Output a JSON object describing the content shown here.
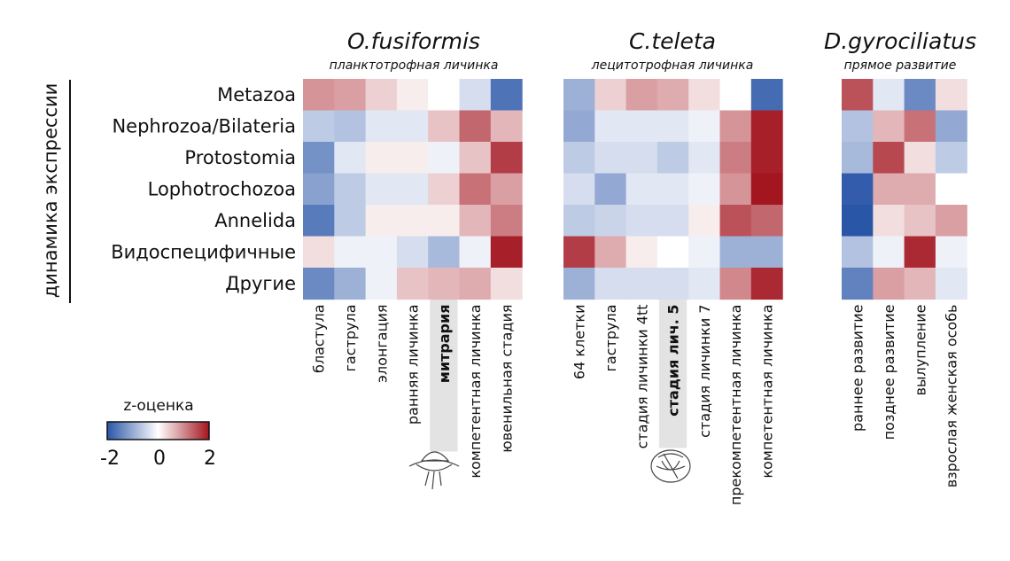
{
  "chart_data": {
    "type": "heatmap",
    "y_axis_label": "динамика экспрессии",
    "rows": [
      "Metazoa",
      "Nephrozoa/Bilateria",
      "Protostomia",
      "Lophotrochozoa",
      "Annelida",
      "Видоспецифичные",
      "Другие"
    ],
    "legend": {
      "title": "z-оценка",
      "min": -2,
      "mid": 0,
      "max": 2,
      "min_label": "-2",
      "mid_label": "0",
      "max_label": "2",
      "colors": [
        "#2a56a8",
        "#ffffff",
        "#a3151f"
      ]
    },
    "panels": [
      {
        "species": "O.fusiformis",
        "subtitle": "планктотрофная личинка",
        "highlight_column": 4,
        "columns": [
          "бластула",
          "гаструла",
          "элонгация",
          "ранняя личинка",
          "митрария",
          "компетентная личинка",
          "ювенильная стадия"
        ],
        "values": [
          [
            0.8,
            0.7,
            0.3,
            0.1,
            0.0,
            -0.3,
            -1.6
          ],
          [
            -0.5,
            -0.6,
            -0.2,
            -0.2,
            0.4,
            1.2,
            0.5
          ],
          [
            -1.2,
            -0.2,
            0.1,
            0.1,
            -0.1,
            0.4,
            1.6
          ],
          [
            -1.0,
            -0.5,
            -0.2,
            -0.2,
            0.3,
            1.1,
            0.7
          ],
          [
            -1.5,
            -0.5,
            0.1,
            0.1,
            0.1,
            0.5,
            1.0
          ],
          [
            0.2,
            -0.1,
            -0.1,
            -0.3,
            -0.7,
            -0.1,
            1.9
          ],
          [
            -1.3,
            -0.8,
            -0.1,
            0.4,
            0.5,
            0.6,
            0.2
          ]
        ]
      },
      {
        "species": "C.teleta",
        "subtitle": "лецитотрофная личинка",
        "highlight_column": 3,
        "columns": [
          "64 клетки",
          "гаструла",
          "стадия личинки 4tt",
          "стадия лич. 5",
          "стадия личинки 7",
          "прекомпетентная личинка",
          "компетентная личинка"
        ],
        "values": [
          [
            -0.8,
            0.3,
            0.7,
            0.6,
            0.2,
            0.0,
            -1.7
          ],
          [
            -0.9,
            -0.2,
            -0.2,
            -0.2,
            -0.1,
            0.8,
            1.9
          ],
          [
            -0.5,
            -0.3,
            -0.3,
            -0.5,
            -0.2,
            1.0,
            1.9
          ],
          [
            -0.3,
            -0.9,
            -0.2,
            -0.2,
            -0.1,
            0.8,
            2.0
          ],
          [
            -0.5,
            -0.4,
            -0.3,
            -0.3,
            0.1,
            1.4,
            1.2
          ],
          [
            1.6,
            0.6,
            0.1,
            0.0,
            -0.1,
            -0.8,
            -0.8
          ],
          [
            -0.8,
            -0.3,
            -0.3,
            -0.3,
            -0.2,
            0.9,
            1.8
          ]
        ]
      },
      {
        "species": "D.gyrociliatus",
        "subtitle": "прямое развитие",
        "highlight_column": null,
        "columns": [
          "раннее развитие",
          "позднее развитие",
          "вылупление",
          "взрослая женская особь"
        ],
        "values": [
          [
            1.4,
            -0.2,
            -1.3,
            0.2
          ],
          [
            -0.6,
            0.5,
            1.1,
            -0.9
          ],
          [
            -0.7,
            1.5,
            0.2,
            -0.5
          ],
          [
            -1.9,
            0.6,
            0.6,
            0.0
          ],
          [
            -2.0,
            0.2,
            0.4,
            0.7
          ],
          [
            -0.6,
            -0.1,
            1.8,
            -0.1
          ],
          [
            -1.4,
            0.7,
            0.5,
            -0.2
          ]
        ]
      }
    ]
  }
}
